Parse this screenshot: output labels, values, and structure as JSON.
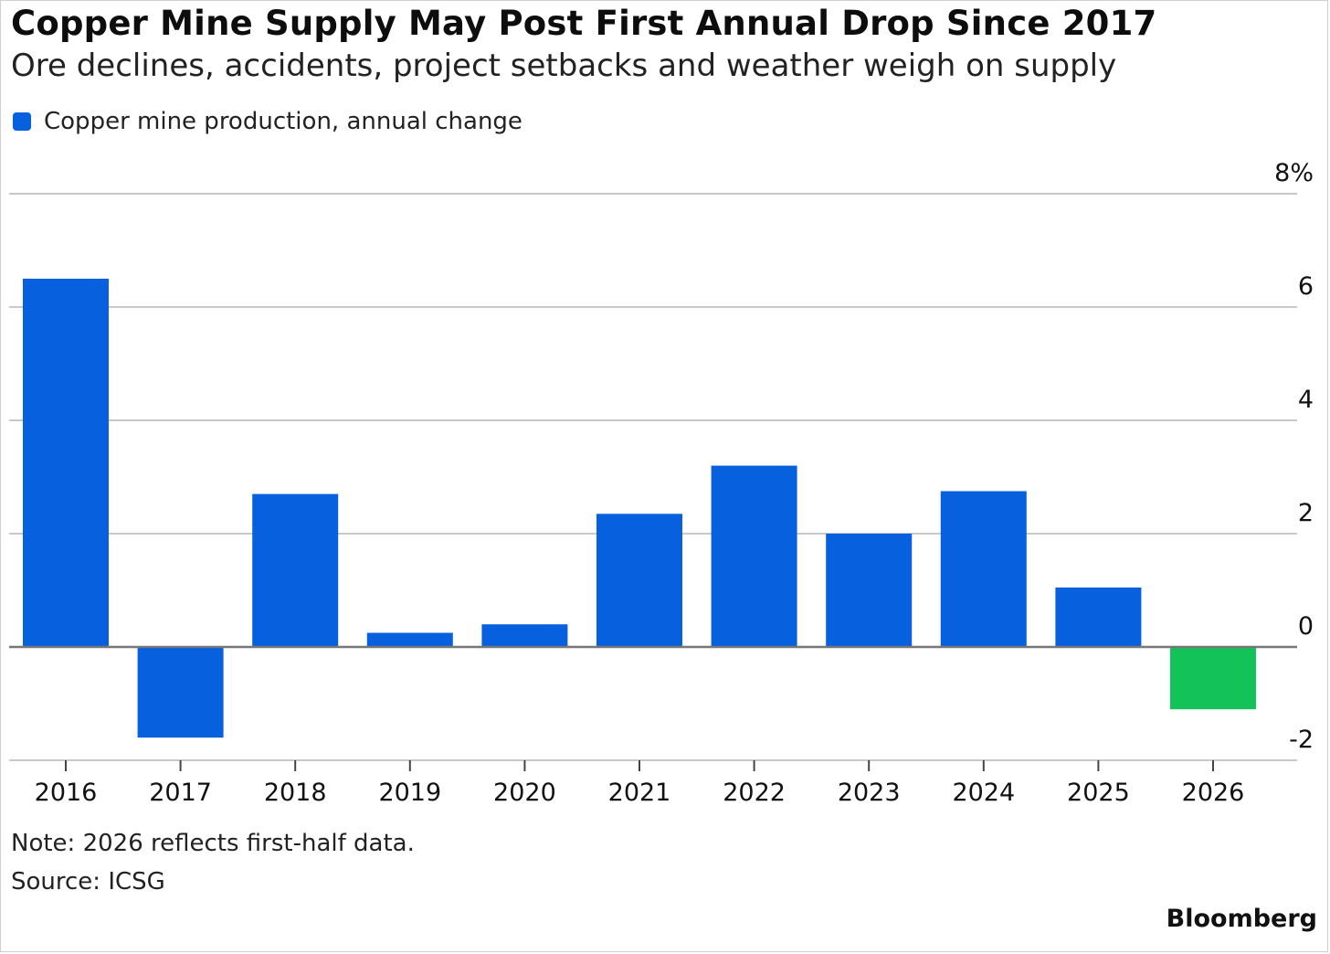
{
  "title": "Copper Mine Supply May Post First Annual Drop Since 2017",
  "subtitle": "Ore declines, accidents, project setbacks and weather weigh on supply",
  "note": "Note: 2026 reflects first-half data.",
  "source": "Source: ICSG",
  "brand": "Bloomberg",
  "chart_data": {
    "type": "bar",
    "categories": [
      "2016",
      "2017",
      "2018",
      "2019",
      "2020",
      "2021",
      "2022",
      "2023",
      "2024",
      "2025",
      "2026"
    ],
    "series": [
      {
        "name": "Copper mine production, annual change",
        "values": [
          6.5,
          -1.6,
          2.7,
          0.25,
          0.4,
          2.35,
          3.2,
          2.0,
          2.75,
          1.05,
          -1.1
        ]
      }
    ],
    "ylim": [
      -2,
      8
    ],
    "yticks": [
      -2,
      0,
      2,
      4,
      6,
      8
    ],
    "ytick_labels": [
      "-2",
      "0",
      "2",
      "4",
      "6",
      "8%"
    ],
    "ylabel": "",
    "xlabel": "",
    "grid": true,
    "y_axis_side": "right",
    "legend_position": "top-left",
    "colors": {
      "bar": "#0760de",
      "highlight_bar": "#14c25a",
      "grid": "#c8c8c8",
      "zero_line": "#777777"
    },
    "highlight_category": "2026"
  }
}
